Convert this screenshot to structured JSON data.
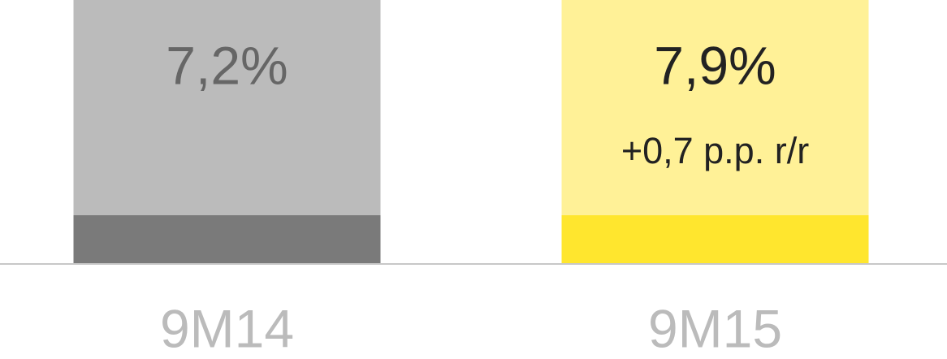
{
  "chart_data": {
    "type": "bar",
    "categories": [
      "9M14",
      "9M15"
    ],
    "values": [
      7.2,
      7.9
    ],
    "value_labels": [
      "7,2%",
      "7,9%"
    ],
    "annotations": [
      null,
      "+0,7 p.p. r/r"
    ],
    "colors": [
      "#bbbbbb",
      "#fff197"
    ],
    "base_colors": [
      "#7a7a7a",
      "#ffe62e"
    ],
    "label_colors": [
      "#666666",
      "#222222"
    ],
    "ylim": [
      0,
      7
    ]
  }
}
